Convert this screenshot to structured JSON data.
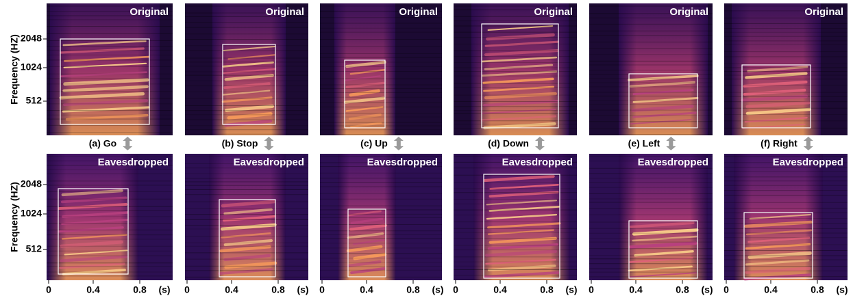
{
  "y_axis_label": "Frequency (HZ)",
  "y_ticks": [
    "2048",
    "1024",
    "512"
  ],
  "x_ticks": [
    "0",
    "0.4",
    "0.8",
    "(s)"
  ],
  "rows": [
    {
      "label": "Original"
    },
    {
      "label": "Eavesdropped"
    }
  ],
  "captions": [
    "(a) Go",
    "(b) Stop",
    "(c) Up",
    "(d) Down",
    "(e) Left",
    "(f) Right"
  ]
}
